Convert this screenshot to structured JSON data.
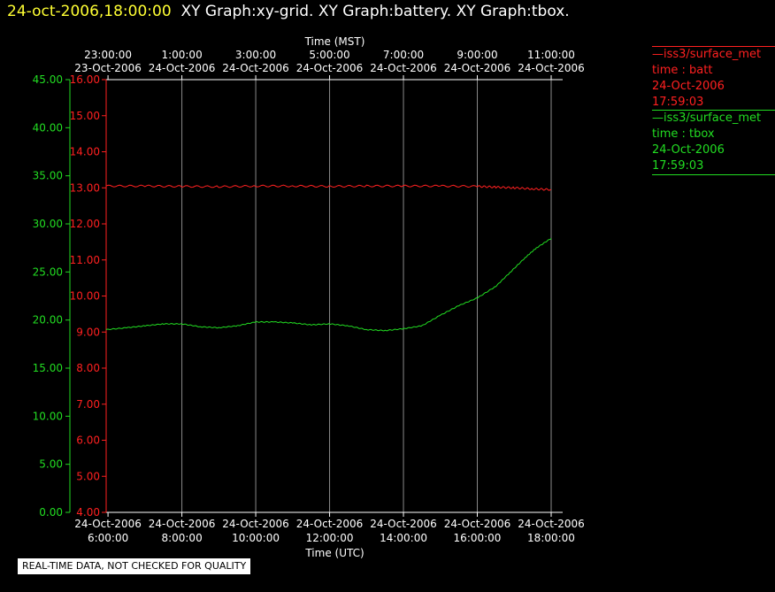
{
  "header": {
    "timestamp": "24-oct-2006,18:00:00",
    "graphs": "XY Graph:xy-grid.  XY Graph:battery.  XY Graph:tbox."
  },
  "colors": {
    "batt": "#ff2020",
    "tbox": "#22dd22",
    "axis": "#ffffff",
    "grid": "#8a8a8a",
    "timestamp": "#ffff33"
  },
  "legend": [
    {
      "series": "batt",
      "source": "iss3/surface_met",
      "var": "time : batt",
      "date": "24-Oct-2006",
      "time": "17:59:03"
    },
    {
      "series": "tbox",
      "source": "iss3/surface_met",
      "var": "time : tbox",
      "date": "24-Oct-2006",
      "time": "17:59:03"
    }
  ],
  "notice": "REAL-TIME DATA, NOT CHECKED FOR QUALITY",
  "chart_data": {
    "type": "line",
    "title": "",
    "top_axis_label": "Time (MST)",
    "bottom_axis_label": "Time (UTC)",
    "x_range_utc_hours": [
      5.95,
      18.0
    ],
    "top_ticks": [
      {
        "time": "23:00:00",
        "date": "23-Oct-2006"
      },
      {
        "time": "1:00:00",
        "date": "24-Oct-2006"
      },
      {
        "time": "3:00:00",
        "date": "24-Oct-2006"
      },
      {
        "time": "5:00:00",
        "date": "24-Oct-2006"
      },
      {
        "time": "7:00:00",
        "date": "24-Oct-2006"
      },
      {
        "time": "9:00:00",
        "date": "24-Oct-2006"
      },
      {
        "time": "11:00:00",
        "date": "24-Oct-2006"
      }
    ],
    "bottom_ticks": [
      {
        "date": "24-Oct-2006",
        "time": "6:00:00"
      },
      {
        "date": "24-Oct-2006",
        "time": "8:00:00"
      },
      {
        "date": "24-Oct-2006",
        "time": "10:00:00"
      },
      {
        "date": "24-Oct-2006",
        "time": "12:00:00"
      },
      {
        "date": "24-Oct-2006",
        "time": "14:00:00"
      },
      {
        "date": "24-Oct-2006",
        "time": "16:00:00"
      },
      {
        "date": "24-Oct-2006",
        "time": "18:00:00"
      }
    ],
    "grid": true,
    "axes": {
      "tbox": {
        "range": [
          0,
          45
        ],
        "ticks": [
          "0.00",
          "5.00",
          "10.00",
          "15.00",
          "20.00",
          "25.00",
          "30.00",
          "35.00",
          "40.00",
          "45.00"
        ]
      },
      "batt": {
        "range": [
          4,
          16
        ],
        "ticks": [
          "4.00",
          "5.00",
          "6.00",
          "7.00",
          "8.00",
          "9.00",
          "10.00",
          "11.00",
          "12.00",
          "13.00",
          "14.00",
          "15.00",
          "16.00"
        ]
      }
    },
    "series": [
      {
        "key": "batt",
        "x": [
          5.95,
          7.0,
          8.0,
          9.0,
          10.0,
          11.0,
          12.0,
          13.0,
          14.0,
          15.0,
          16.0,
          16.5,
          17.0,
          17.5,
          18.0
        ],
        "y": [
          13.05,
          13.05,
          13.04,
          13.03,
          13.05,
          13.05,
          13.04,
          13.05,
          13.05,
          13.05,
          13.04,
          13.02,
          13.0,
          12.97,
          12.95
        ]
      },
      {
        "key": "tbox",
        "x": [
          5.95,
          6.5,
          7.0,
          7.5,
          8.0,
          8.5,
          9.0,
          9.5,
          10.0,
          10.5,
          11.0,
          11.5,
          12.0,
          12.5,
          13.0,
          13.5,
          14.0,
          14.5,
          15.0,
          15.5,
          16.0,
          16.5,
          16.9,
          17.3,
          17.6,
          18.0
        ],
        "y": [
          19.0,
          19.2,
          19.4,
          19.6,
          19.6,
          19.3,
          19.2,
          19.4,
          19.8,
          19.8,
          19.7,
          19.5,
          19.6,
          19.4,
          19.0,
          18.9,
          19.1,
          19.4,
          20.5,
          21.5,
          22.3,
          23.5,
          25.0,
          26.5,
          27.5,
          28.5
        ]
      }
    ]
  }
}
